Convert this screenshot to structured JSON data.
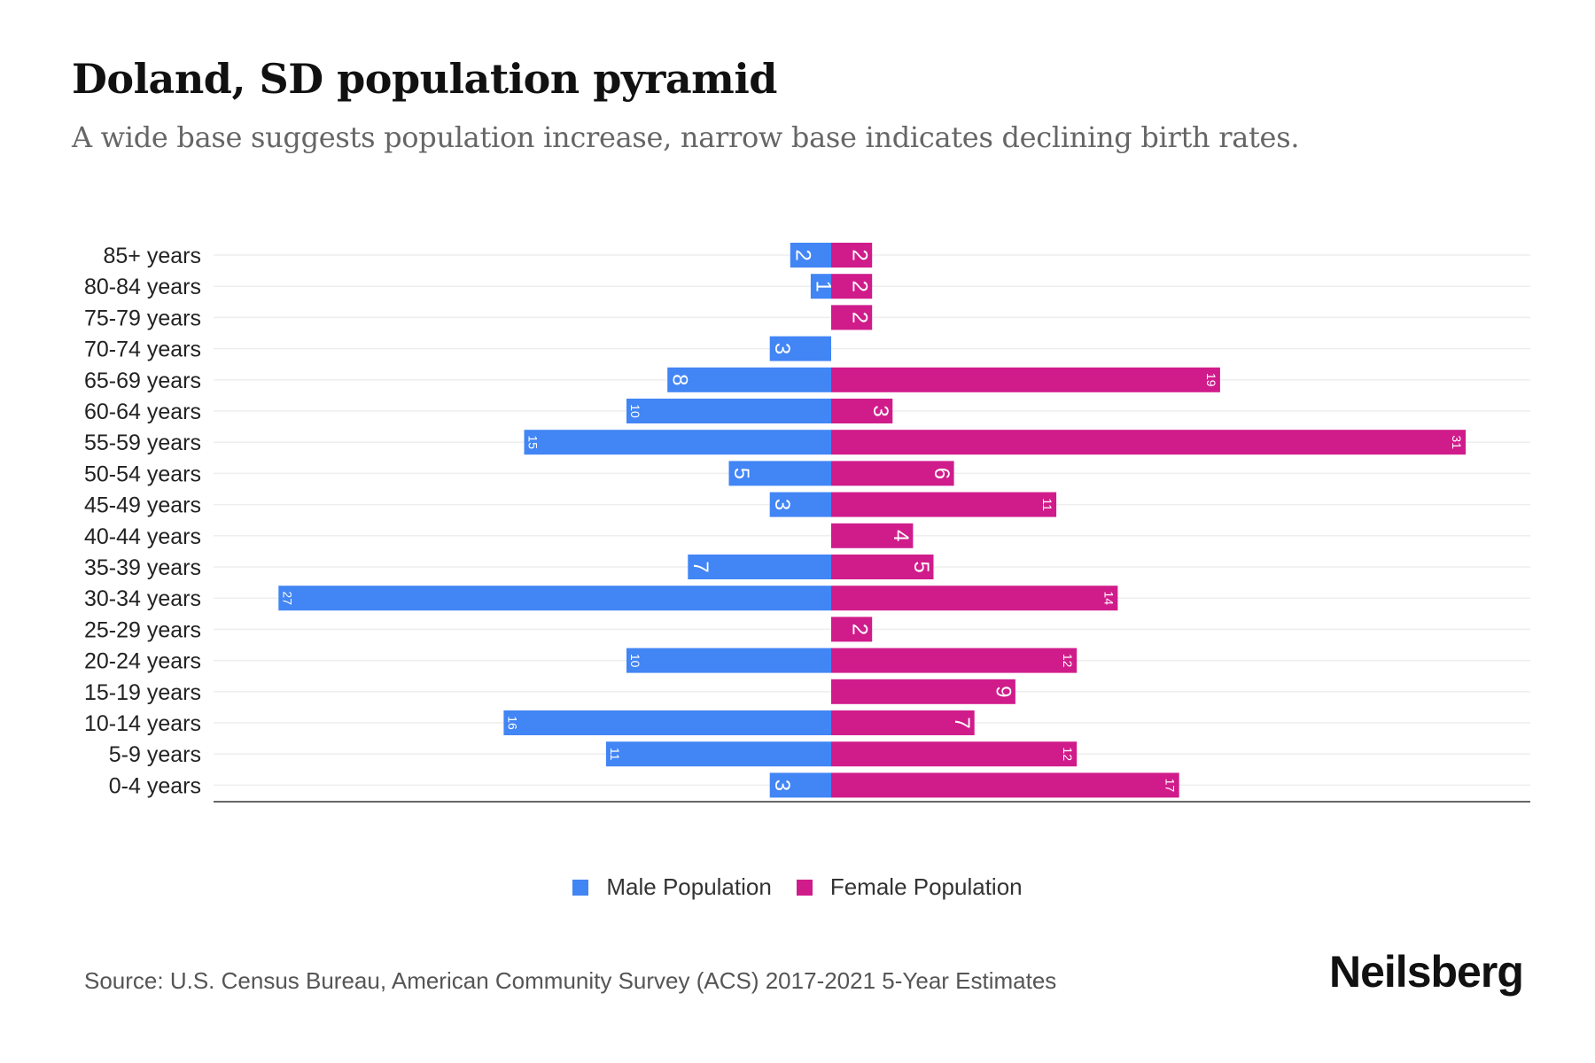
{
  "title": "Doland, SD population pyramid",
  "subtitle": "A wide base suggests population increase, narrow base indicates declining birth rates.",
  "source": "Source: U.S. Census Bureau, American Community Survey (ACS) 2017-2021 5-Year Estimates",
  "logo": "Neilsberg",
  "colors": {
    "male": "#4285f4",
    "female": "#d01c8b"
  },
  "chart_data": {
    "type": "bar",
    "orientation": "horizontal-pyramid",
    "categories": [
      "85+ years",
      "80-84 years",
      "75-79 years",
      "70-74 years",
      "65-69 years",
      "60-64 years",
      "55-59 years",
      "50-54 years",
      "45-49 years",
      "40-44 years",
      "35-39 years",
      "30-34 years",
      "25-29 years",
      "20-24 years",
      "15-19 years",
      "10-14 years",
      "5-9 years",
      "0-4 years"
    ],
    "series": [
      {
        "name": "Male Population",
        "values": [
          2,
          1,
          0,
          3,
          8,
          10,
          15,
          5,
          3,
          0,
          7,
          27,
          0,
          10,
          0,
          16,
          11,
          3
        ]
      },
      {
        "name": "Female Population",
        "values": [
          2,
          2,
          2,
          0,
          19,
          3,
          31,
          6,
          11,
          4,
          5,
          14,
          2,
          12,
          9,
          7,
          12,
          17
        ]
      }
    ],
    "legend_position": "bottom",
    "grid": true
  }
}
